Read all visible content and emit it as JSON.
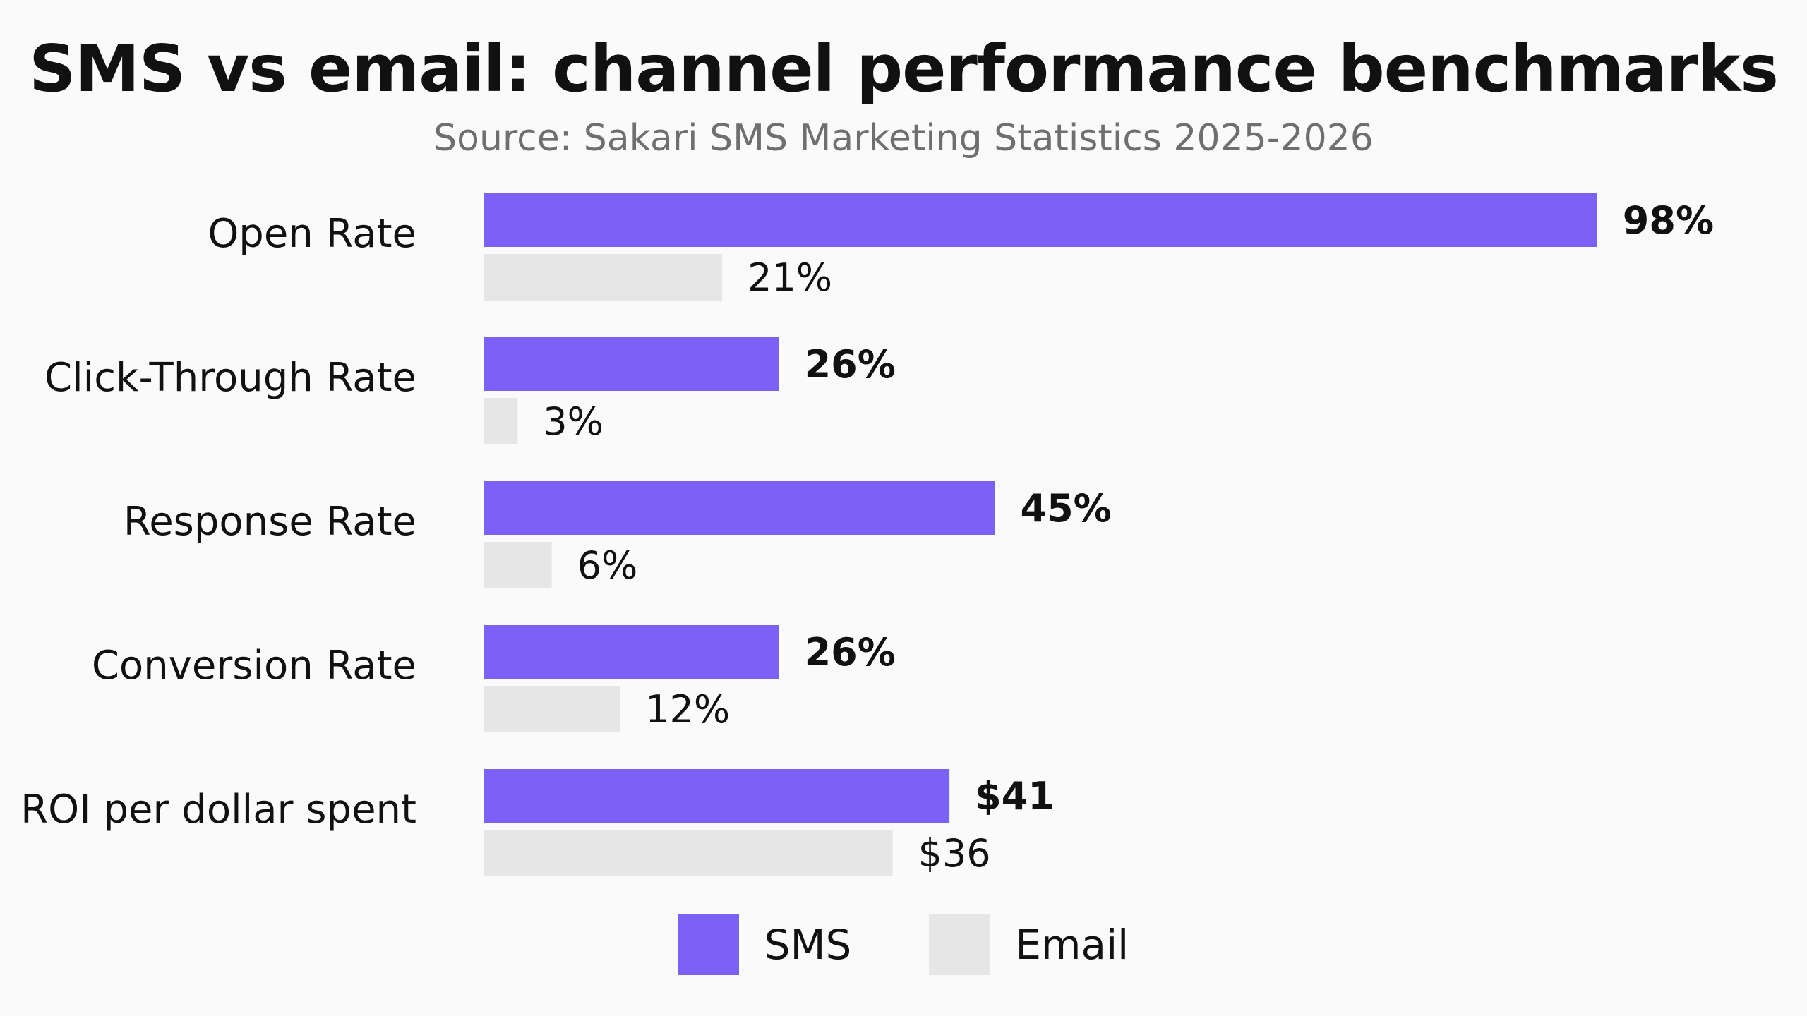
{
  "chart_data": {
    "type": "bar",
    "orientation": "horizontal",
    "title": "SMS vs email: channel performance benchmarks",
    "subtitle": "Source: Sakari SMS Marketing Statistics 2025-2026",
    "categories": [
      "Open Rate",
      "Click-Through Rate",
      "Response Rate",
      "Conversion Rate",
      "ROI per dollar spent"
    ],
    "series": [
      {
        "name": "SMS",
        "color": "#7b61f5",
        "values": [
          98,
          26,
          45,
          26,
          41
        ],
        "labels": [
          "98%",
          "26%",
          "45%",
          "26%",
          "$41"
        ]
      },
      {
        "name": "Email",
        "color": "#e6e6e6",
        "values": [
          21,
          3,
          6,
          12,
          36
        ],
        "labels": [
          "21%",
          "3%",
          "6%",
          "12%",
          "$36"
        ]
      }
    ],
    "xlim": [
      0,
      100
    ],
    "grid": false,
    "legend_position": "bottom-center"
  }
}
